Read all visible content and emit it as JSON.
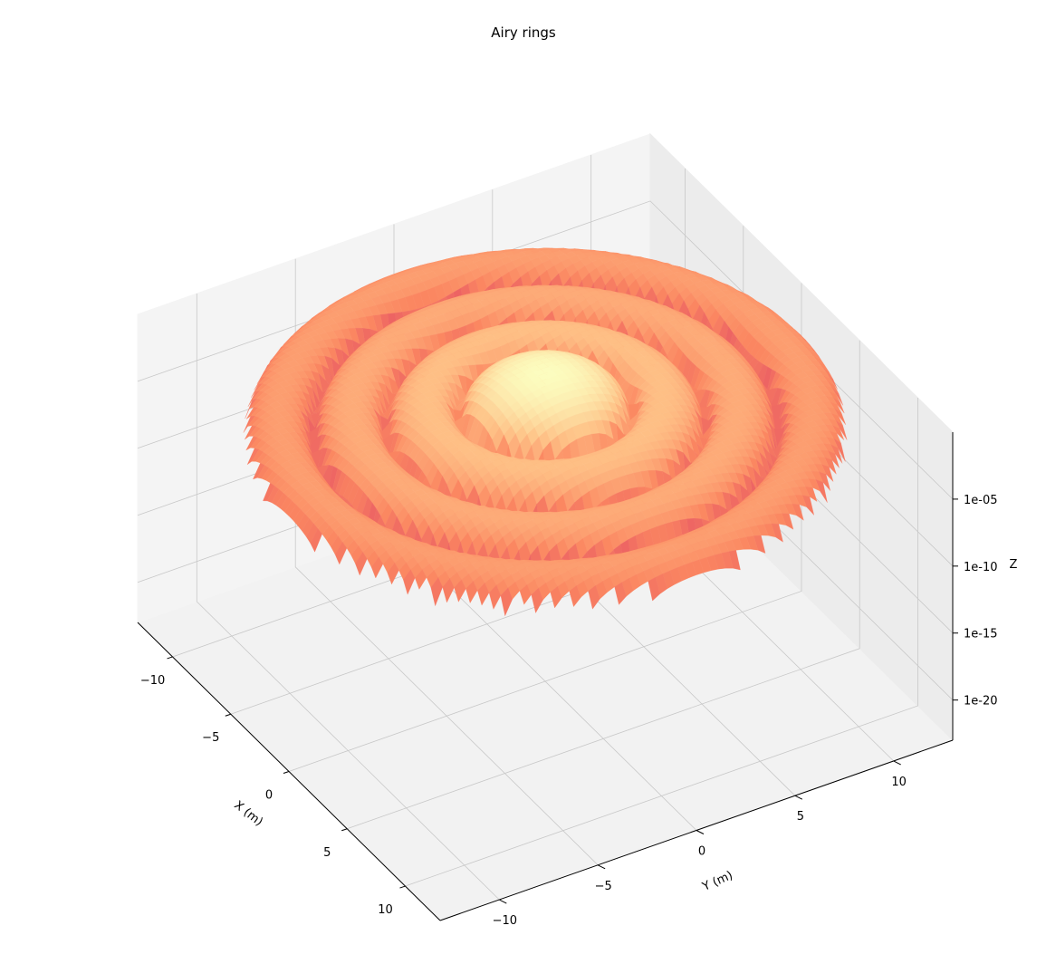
{
  "chart_data": {
    "type": "surface3d",
    "title": "Airy rings",
    "xlabel": "X (m)",
    "ylabel": "Y (m)",
    "zlabel": "Z",
    "xlim": [
      -13,
      13
    ],
    "ylim": [
      -13,
      13
    ],
    "z_scale": "log",
    "x_ticks": [
      -10,
      -5,
      0,
      5,
      10
    ],
    "y_ticks": [
      -10,
      -5,
      0,
      5,
      10
    ],
    "z_ticks": [
      "1e-20",
      "1e-15",
      "1e-10",
      "1e-05"
    ],
    "x_tick_labels": [
      "−10",
      "−5",
      "0",
      "5",
      "10"
    ],
    "y_tick_labels": [
      "−10",
      "−5",
      "0",
      "5",
      "10"
    ],
    "z_tick_labels": [
      "1e-20",
      "1e-15",
      "1e-10",
      "1e-05"
    ],
    "colormap": "magma",
    "grid": true,
    "function": "intensity = (2*J1(r)/r)^2, r = sqrt(x^2 + y^2)"
  }
}
